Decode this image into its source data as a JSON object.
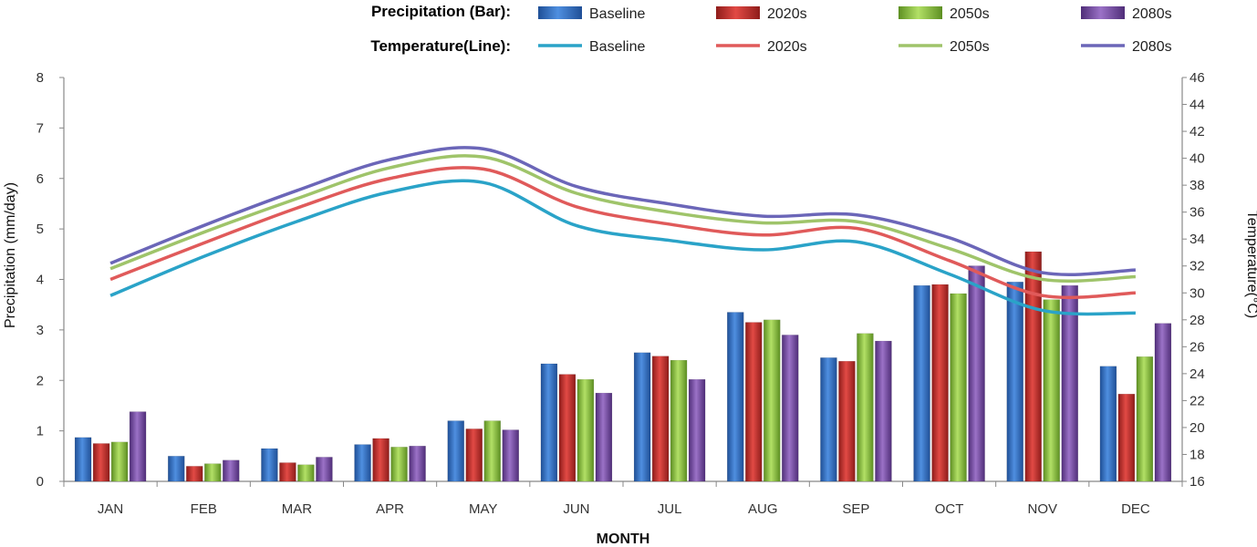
{
  "chart_data": {
    "type": "bar",
    "categories": [
      "JAN",
      "FEB",
      "MAR",
      "APR",
      "MAY",
      "JUN",
      "JUL",
      "AUG",
      "SEP",
      "OCT",
      "NOV",
      "DEC"
    ],
    "legend": {
      "bar_title": "Precipitation (Bar):",
      "line_title": "Temperature(Line):",
      "placement": "top"
    },
    "series": [
      {
        "name": "Baseline",
        "color": "#2f6fc4",
        "values": [
          0.87,
          0.5,
          0.65,
          0.73,
          1.2,
          2.33,
          2.55,
          3.35,
          2.45,
          3.88,
          3.95,
          2.28
        ]
      },
      {
        "name": "2020s",
        "color": "#c8312e",
        "values": [
          0.75,
          0.3,
          0.37,
          0.85,
          1.04,
          2.12,
          2.48,
          3.15,
          2.38,
          3.9,
          4.55,
          1.73
        ]
      },
      {
        "name": "2050s",
        "color": "#8cc63f",
        "values": [
          0.78,
          0.35,
          0.33,
          0.68,
          1.2,
          2.02,
          2.4,
          3.2,
          2.93,
          3.72,
          3.6,
          2.47
        ]
      },
      {
        "name": "2080s",
        "color": "#7a4ea4",
        "values": [
          1.38,
          0.42,
          0.48,
          0.7,
          1.02,
          1.75,
          2.02,
          2.9,
          2.78,
          4.27,
          3.88,
          3.13
        ]
      }
    ],
    "line_series": [
      {
        "name": "Baseline",
        "color": "#2aa3c8",
        "values": [
          29.8,
          32.7,
          35.3,
          37.5,
          38.2,
          35.0,
          33.9,
          33.2,
          33.8,
          31.4,
          28.7,
          28.5
        ]
      },
      {
        "name": "2020s",
        "color": "#e05a5a",
        "values": [
          31.0,
          33.7,
          36.3,
          38.5,
          39.2,
          36.4,
          35.1,
          34.3,
          34.8,
          32.4,
          29.8,
          30.0
        ]
      },
      {
        "name": "2050s",
        "color": "#9fc46a",
        "values": [
          31.8,
          34.5,
          37.0,
          39.3,
          40.1,
          37.4,
          36.0,
          35.2,
          35.3,
          33.3,
          31.0,
          31.2
        ]
      },
      {
        "name": "2080s",
        "color": "#6b66b8",
        "values": [
          32.2,
          35.0,
          37.6,
          39.9,
          40.7,
          37.9,
          36.6,
          35.7,
          35.8,
          34.1,
          31.5,
          31.7
        ]
      }
    ],
    "xlabel": "MONTH",
    "ylabel": "Precipitation (mm/day)",
    "y2label": "Temperature(°C)",
    "ylim": [
      0,
      8
    ],
    "y2lim": [
      16,
      46
    ],
    "yticks": [
      "0",
      "1",
      "2",
      "3",
      "4",
      "5",
      "6",
      "7",
      "8"
    ],
    "y2ticks": [
      "16",
      "18",
      "20",
      "22",
      "24",
      "26",
      "28",
      "30",
      "32",
      "34",
      "36",
      "38",
      "40",
      "42",
      "44",
      "46"
    ],
    "grid": false
  }
}
